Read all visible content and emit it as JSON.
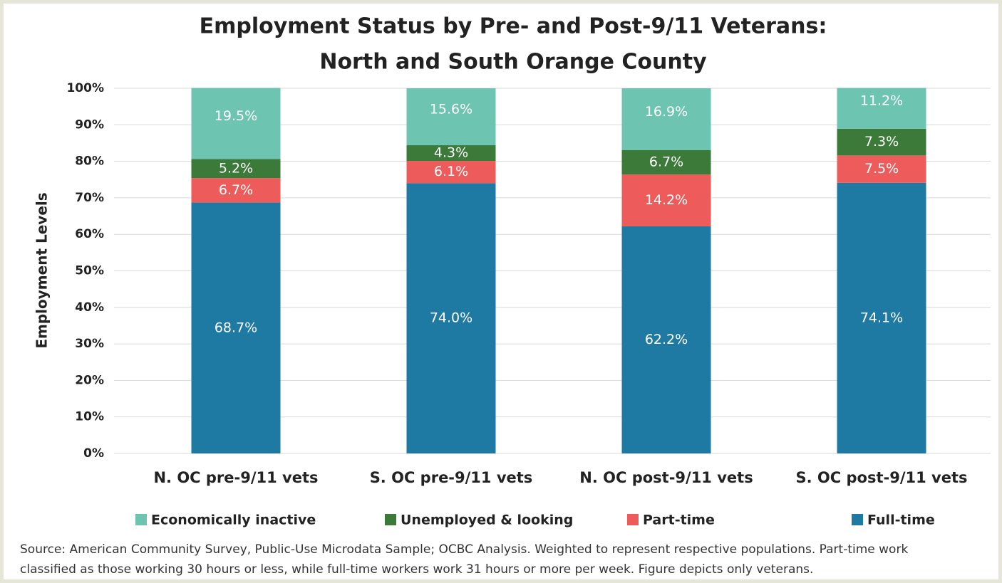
{
  "chart_data": {
    "type": "stacked_bar",
    "title": [
      "Employment Status by Pre- and Post-9/11 Veterans:",
      "North and South Orange County"
    ],
    "y_label": "Employment Levels",
    "categories": [
      "N. OC pre-9/11 vets",
      "S. OC pre-9/11 vets",
      "N. OC post-9/11 vets",
      "S. OC post-9/11 vets"
    ],
    "series": [
      {
        "name": "Economically inactive",
        "color": "#6cc4b1",
        "values": [
          19.5,
          15.6,
          16.9,
          11.2
        ],
        "value_labels": [
          "19.5%",
          "15.6%",
          "16.9%",
          "11.2%"
        ]
      },
      {
        "name": "Unemployed & looking",
        "color": "#3b7a39",
        "values": [
          5.2,
          4.3,
          6.7,
          7.3
        ],
        "value_labels": [
          "5.2%",
          "4.3%",
          "6.7%",
          "7.3%"
        ]
      },
      {
        "name": "Part-time",
        "color": "#ee5b5b",
        "values": [
          6.7,
          6.1,
          14.2,
          7.5
        ],
        "value_labels": [
          "6.7%",
          "6.1%",
          "14.2%",
          "7.5%"
        ]
      },
      {
        "name": "Full-time",
        "color": "#1f7aa3",
        "values": [
          68.7,
          74.0,
          62.2,
          74.1
        ],
        "value_labels": [
          "68.7%",
          "74.0%",
          "62.2%",
          "74.1%"
        ]
      }
    ],
    "ylim": [
      0,
      100
    ],
    "yticks": [
      {
        "value": 0,
        "label": "0%"
      },
      {
        "value": 10,
        "label": "10%"
      },
      {
        "value": 20,
        "label": "20%"
      },
      {
        "value": 30,
        "label": "30%"
      },
      {
        "value": 40,
        "label": "40%"
      },
      {
        "value": 50,
        "label": "50%"
      },
      {
        "value": 60,
        "label": "60%"
      },
      {
        "value": 70,
        "label": "70%"
      },
      {
        "value": 80,
        "label": "80%"
      },
      {
        "value": 90,
        "label": "90%"
      },
      {
        "value": 100,
        "label": "100%"
      }
    ],
    "grid": true,
    "legend": "bottom",
    "source": [
      "Source: American Community Survey, Public-Use Microdata Sample; OCBC Analysis. Weighted to represent respective populations. Part-time work",
      "classified as those working 30 hours or less, while full-time workers work 31 hours or more per week. Figure depicts only veterans."
    ]
  }
}
